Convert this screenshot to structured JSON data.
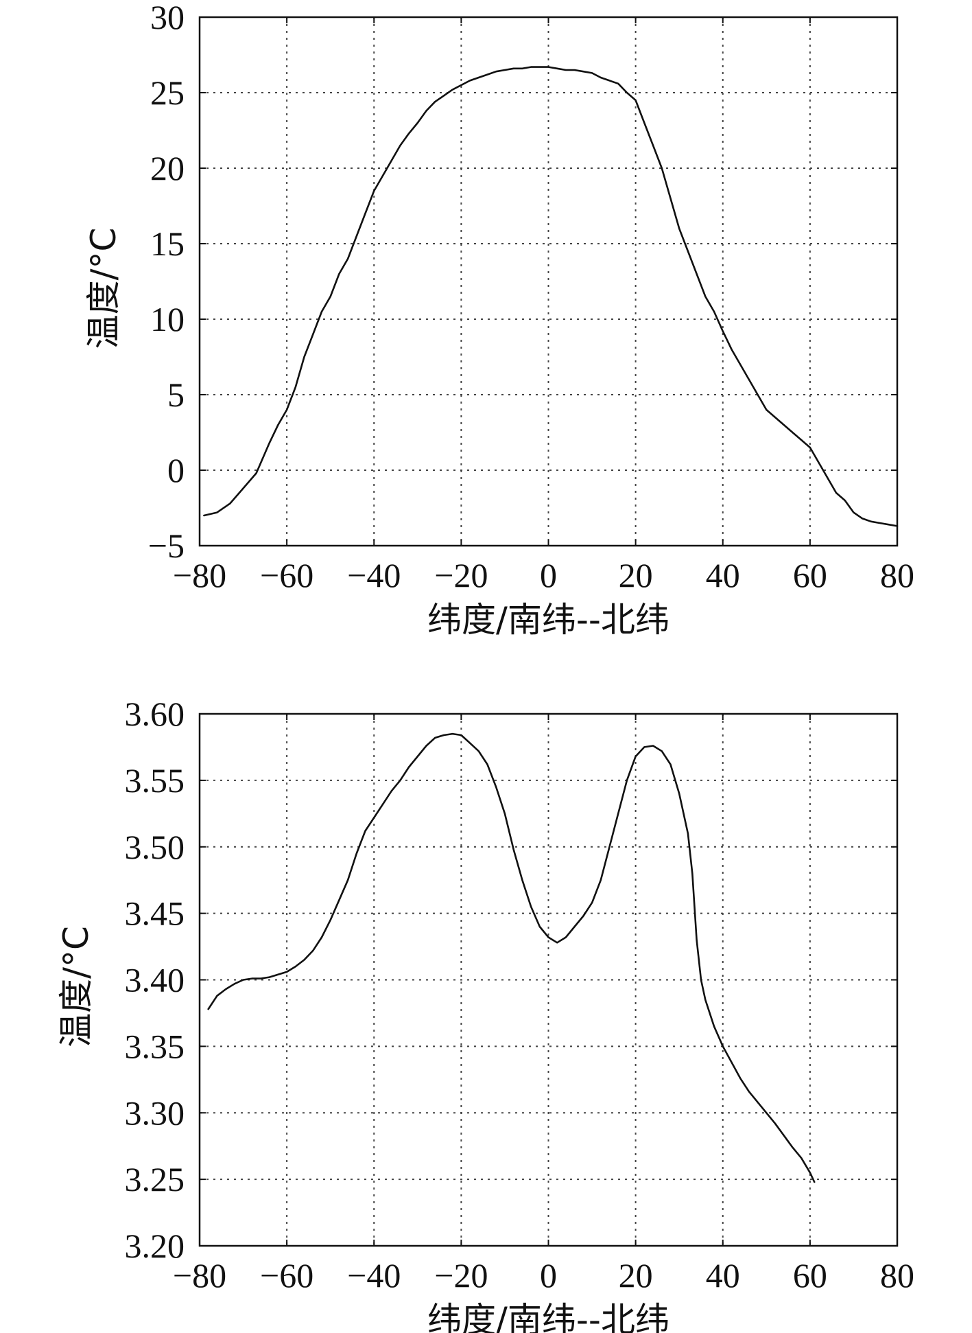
{
  "chart_data": [
    {
      "type": "line",
      "title": "",
      "xlabel": "纬度/南纬--北纬",
      "ylabel": "温度/°C",
      "xlim": [
        -80,
        80
      ],
      "ylim": [
        -5,
        30
      ],
      "xticks": [
        -80,
        -60,
        -40,
        -20,
        0,
        20,
        40,
        60,
        80
      ],
      "yticks": [
        -5,
        0,
        5,
        10,
        15,
        20,
        25,
        30
      ],
      "xtick_labels": [
        "−80",
        "−60",
        "−40",
        "−20",
        "0",
        "20",
        "40",
        "60",
        "80"
      ],
      "ytick_labels": [
        "−5",
        "0",
        "5",
        "10",
        "15",
        "20",
        "25",
        "30"
      ],
      "grid": true,
      "legend": "none",
      "series": [
        {
          "x": [
            -79,
            -76,
            -73,
            -70,
            -67,
            -64,
            -62,
            -60,
            -58,
            -56,
            -54,
            -52,
            -50,
            -48,
            -46,
            -44,
            -42,
            -40,
            -38,
            -36,
            -34,
            -32,
            -30,
            -28,
            -26,
            -24,
            -22,
            -20,
            -18,
            -16,
            -14,
            -12,
            -10,
            -8,
            -6,
            -4,
            -2,
            0,
            2,
            4,
            6,
            8,
            10,
            12,
            14,
            16,
            18,
            20,
            22,
            24,
            26,
            28,
            30,
            32,
            34,
            36,
            38,
            40,
            42,
            44,
            46,
            48,
            50,
            52,
            54,
            56,
            58,
            60,
            62,
            64,
            66,
            68,
            70,
            72,
            74,
            76,
            78,
            80
          ],
          "y": [
            -3.0,
            -2.8,
            -2.2,
            -1.2,
            -0.2,
            1.8,
            3.0,
            4.0,
            5.5,
            7.5,
            9.0,
            10.5,
            11.5,
            13.0,
            14.0,
            15.5,
            17.0,
            18.5,
            19.5,
            20.5,
            21.5,
            22.3,
            23.0,
            23.8,
            24.4,
            24.8,
            25.2,
            25.5,
            25.8,
            26.0,
            26.2,
            26.4,
            26.5,
            26.6,
            26.6,
            26.7,
            26.7,
            26.7,
            26.6,
            26.5,
            26.5,
            26.4,
            26.3,
            26.0,
            25.8,
            25.6,
            25.0,
            24.5,
            23.0,
            21.5,
            20.0,
            18.0,
            16.0,
            14.5,
            13.0,
            11.5,
            10.5,
            9.2,
            8.0,
            7.0,
            6.0,
            5.0,
            4.0,
            3.5,
            3.0,
            2.5,
            2.0,
            1.5,
            0.5,
            -0.5,
            -1.5,
            -2.0,
            -2.8,
            -3.2,
            -3.4,
            -3.5,
            -3.6,
            -3.7
          ]
        }
      ]
    },
    {
      "type": "line",
      "title": "",
      "xlabel": "纬度/南纬--北纬",
      "ylabel": "温度/°C",
      "xlim": [
        -80,
        80
      ],
      "ylim": [
        3.2,
        3.6
      ],
      "xticks": [
        -80,
        -60,
        -40,
        -20,
        0,
        20,
        40,
        60,
        80
      ],
      "yticks": [
        3.2,
        3.25,
        3.3,
        3.35,
        3.4,
        3.45,
        3.5,
        3.55,
        3.6
      ],
      "xtick_labels": [
        "−80",
        "−60",
        "−40",
        "−20",
        "0",
        "20",
        "40",
        "60",
        "80"
      ],
      "ytick_labels": [
        "3.20",
        "3.25",
        "3.30",
        "3.35",
        "3.40",
        "3.45",
        "3.50",
        "3.55",
        "3.60"
      ],
      "grid": true,
      "legend": "none",
      "series": [
        {
          "x": [
            -78,
            -76,
            -74,
            -72,
            -70,
            -68,
            -66,
            -64,
            -62,
            -60,
            -58,
            -56,
            -54,
            -52,
            -50,
            -48,
            -46,
            -44,
            -42,
            -40,
            -38,
            -36,
            -34,
            -32,
            -30,
            -28,
            -26,
            -24,
            -22,
            -20,
            -18,
            -16,
            -14,
            -12,
            -10,
            -8,
            -6,
            -4,
            -2,
            0,
            2,
            4,
            6,
            8,
            10,
            12,
            14,
            16,
            18,
            20,
            22,
            24,
            26,
            28,
            30,
            32,
            33,
            34,
            35,
            36,
            38,
            40,
            42,
            44,
            46,
            48,
            50,
            52,
            54,
            56,
            58,
            60,
            61
          ],
          "y": [
            3.378,
            3.388,
            3.393,
            3.397,
            3.4,
            3.401,
            3.401,
            3.402,
            3.404,
            3.406,
            3.41,
            3.415,
            3.422,
            3.432,
            3.445,
            3.46,
            3.475,
            3.495,
            3.512,
            3.522,
            3.532,
            3.542,
            3.55,
            3.56,
            3.568,
            3.576,
            3.582,
            3.584,
            3.585,
            3.584,
            3.578,
            3.572,
            3.562,
            3.545,
            3.525,
            3.498,
            3.475,
            3.455,
            3.44,
            3.432,
            3.428,
            3.432,
            3.44,
            3.448,
            3.458,
            3.475,
            3.5,
            3.525,
            3.55,
            3.568,
            3.575,
            3.576,
            3.572,
            3.562,
            3.54,
            3.51,
            3.48,
            3.43,
            3.4,
            3.385,
            3.365,
            3.35,
            3.338,
            3.326,
            3.316,
            3.308,
            3.3,
            3.292,
            3.283,
            3.274,
            3.266,
            3.255,
            3.248
          ]
        }
      ]
    }
  ]
}
